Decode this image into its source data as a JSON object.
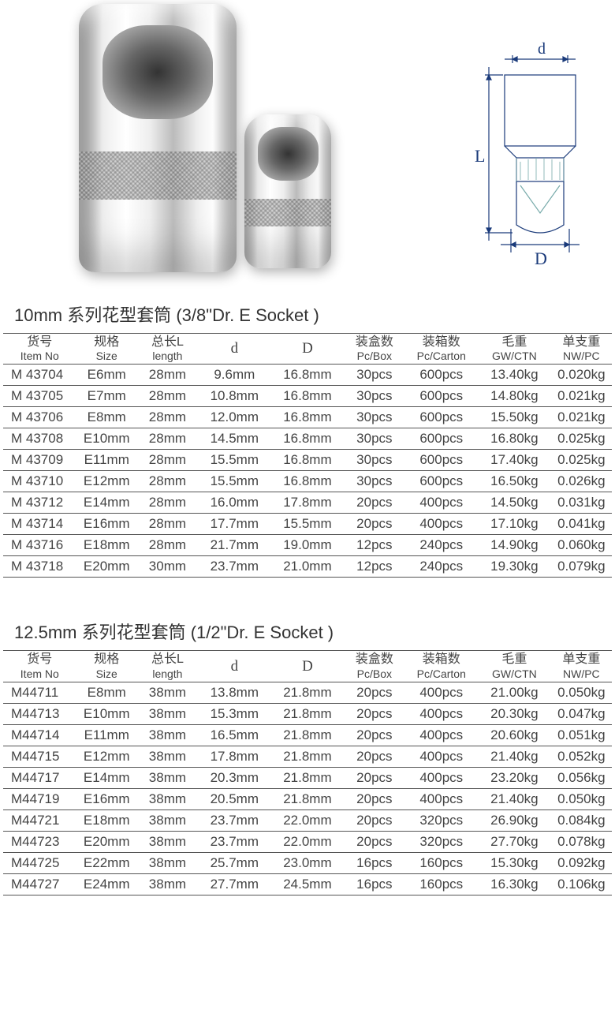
{
  "diagram_labels": {
    "d": "d",
    "L": "L",
    "D": "D"
  },
  "section1": {
    "title": "10mm 系列花型套筒 (3/8\"Dr. E Socket )",
    "columns": [
      {
        "cn": "货号",
        "en": "Item No"
      },
      {
        "cn": "规格",
        "en": "Size"
      },
      {
        "cn": "总长L",
        "en": "length"
      },
      {
        "cn": "",
        "en": "d"
      },
      {
        "cn": "",
        "en": "D"
      },
      {
        "cn": "装盒数",
        "en": "Pc/Box"
      },
      {
        "cn": "装箱数",
        "en": "Pc/Carton"
      },
      {
        "cn": "毛重",
        "en": "GW/CTN"
      },
      {
        "cn": "单支重",
        "en": "NW/PC"
      }
    ],
    "rows": [
      [
        "M 43704",
        "E6mm",
        "28mm",
        "9.6mm",
        "16.8mm",
        "30pcs",
        "600pcs",
        "13.40kg",
        "0.020kg"
      ],
      [
        "M 43705",
        "E7mm",
        "28mm",
        "10.8mm",
        "16.8mm",
        "30pcs",
        "600pcs",
        "14.80kg",
        "0.021kg"
      ],
      [
        "M 43706",
        "E8mm",
        "28mm",
        "12.0mm",
        "16.8mm",
        "30pcs",
        "600pcs",
        "15.50kg",
        "0.021kg"
      ],
      [
        "M 43708",
        "E10mm",
        "28mm",
        "14.5mm",
        "16.8mm",
        "30pcs",
        "600pcs",
        "16.80kg",
        "0.025kg"
      ],
      [
        "M 43709",
        "E11mm",
        "28mm",
        "15.5mm",
        "16.8mm",
        "30pcs",
        "600pcs",
        "17.40kg",
        "0.025kg"
      ],
      [
        "M 43710",
        "E12mm",
        "28mm",
        "15.5mm",
        "16.8mm",
        "30pcs",
        "600pcs",
        "16.50kg",
        "0.026kg"
      ],
      [
        "M 43712",
        "E14mm",
        "28mm",
        "16.0mm",
        "17.8mm",
        "20pcs",
        "400pcs",
        "14.50kg",
        "0.031kg"
      ],
      [
        "M 43714",
        "E16mm",
        "28mm",
        "17.7mm",
        "15.5mm",
        "20pcs",
        "400pcs",
        "17.10kg",
        "0.041kg"
      ],
      [
        "M 43716",
        "E18mm",
        "28mm",
        "21.7mm",
        "19.0mm",
        "12pcs",
        "240pcs",
        "14.90kg",
        "0.060kg"
      ],
      [
        "M 43718",
        "E20mm",
        "30mm",
        "23.7mm",
        "21.0mm",
        "12pcs",
        "240pcs",
        "19.30kg",
        "0.079kg"
      ]
    ]
  },
  "section2": {
    "title": "12.5mm 系列花型套筒 (1/2\"Dr. E Socket )",
    "columns": [
      {
        "cn": "货号",
        "en": "Item No"
      },
      {
        "cn": "规格",
        "en": "Size"
      },
      {
        "cn": "总长L",
        "en": "length"
      },
      {
        "cn": "",
        "en": "d"
      },
      {
        "cn": "",
        "en": "D"
      },
      {
        "cn": "装盒数",
        "en": "Pc/Box"
      },
      {
        "cn": "装箱数",
        "en": "Pc/Carton"
      },
      {
        "cn": "毛重",
        "en": "GW/CTN"
      },
      {
        "cn": "单支重",
        "en": "NW/PC"
      }
    ],
    "rows": [
      [
        "M44711",
        "E8mm",
        "38mm",
        "13.8mm",
        "21.8mm",
        "20pcs",
        "400pcs",
        "21.00kg",
        "0.050kg"
      ],
      [
        "M44713",
        "E10mm",
        "38mm",
        "15.3mm",
        "21.8mm",
        "20pcs",
        "400pcs",
        "20.30kg",
        "0.047kg"
      ],
      [
        "M44714",
        "E11mm",
        "38mm",
        "16.5mm",
        "21.8mm",
        "20pcs",
        "400pcs",
        "20.60kg",
        "0.051kg"
      ],
      [
        "M44715",
        "E12mm",
        "38mm",
        "17.8mm",
        "21.8mm",
        "20pcs",
        "400pcs",
        "21.40kg",
        "0.052kg"
      ],
      [
        "M44717",
        "E14mm",
        "38mm",
        "20.3mm",
        "21.8mm",
        "20pcs",
        "400pcs",
        "23.20kg",
        "0.056kg"
      ],
      [
        "M44719",
        "E16mm",
        "38mm",
        "20.5mm",
        "21.8mm",
        "20pcs",
        "400pcs",
        "21.40kg",
        "0.050kg"
      ],
      [
        "M44721",
        "E18mm",
        "38mm",
        "23.7mm",
        "22.0mm",
        "20pcs",
        "320pcs",
        "26.90kg",
        "0.084kg"
      ],
      [
        "M44723",
        "E20mm",
        "38mm",
        "23.7mm",
        "22.0mm",
        "20pcs",
        "320pcs",
        "27.70kg",
        "0.078kg"
      ],
      [
        "M44725",
        "E22mm",
        "38mm",
        "25.7mm",
        "23.0mm",
        "16pcs",
        "160pcs",
        "15.30kg",
        "0.092kg"
      ],
      [
        "M44727",
        "E24mm",
        "38mm",
        "27.7mm",
        "24.5mm",
        "16pcs",
        "160pcs",
        "16.30kg",
        "0.106kg"
      ]
    ]
  },
  "col_widths": [
    "12%",
    "10%",
    "10%",
    "12%",
    "12%",
    "10%",
    "12%",
    "12%",
    "12%"
  ],
  "colors": {
    "text": "#404040",
    "border": "#555555",
    "background": "#ffffff"
  }
}
